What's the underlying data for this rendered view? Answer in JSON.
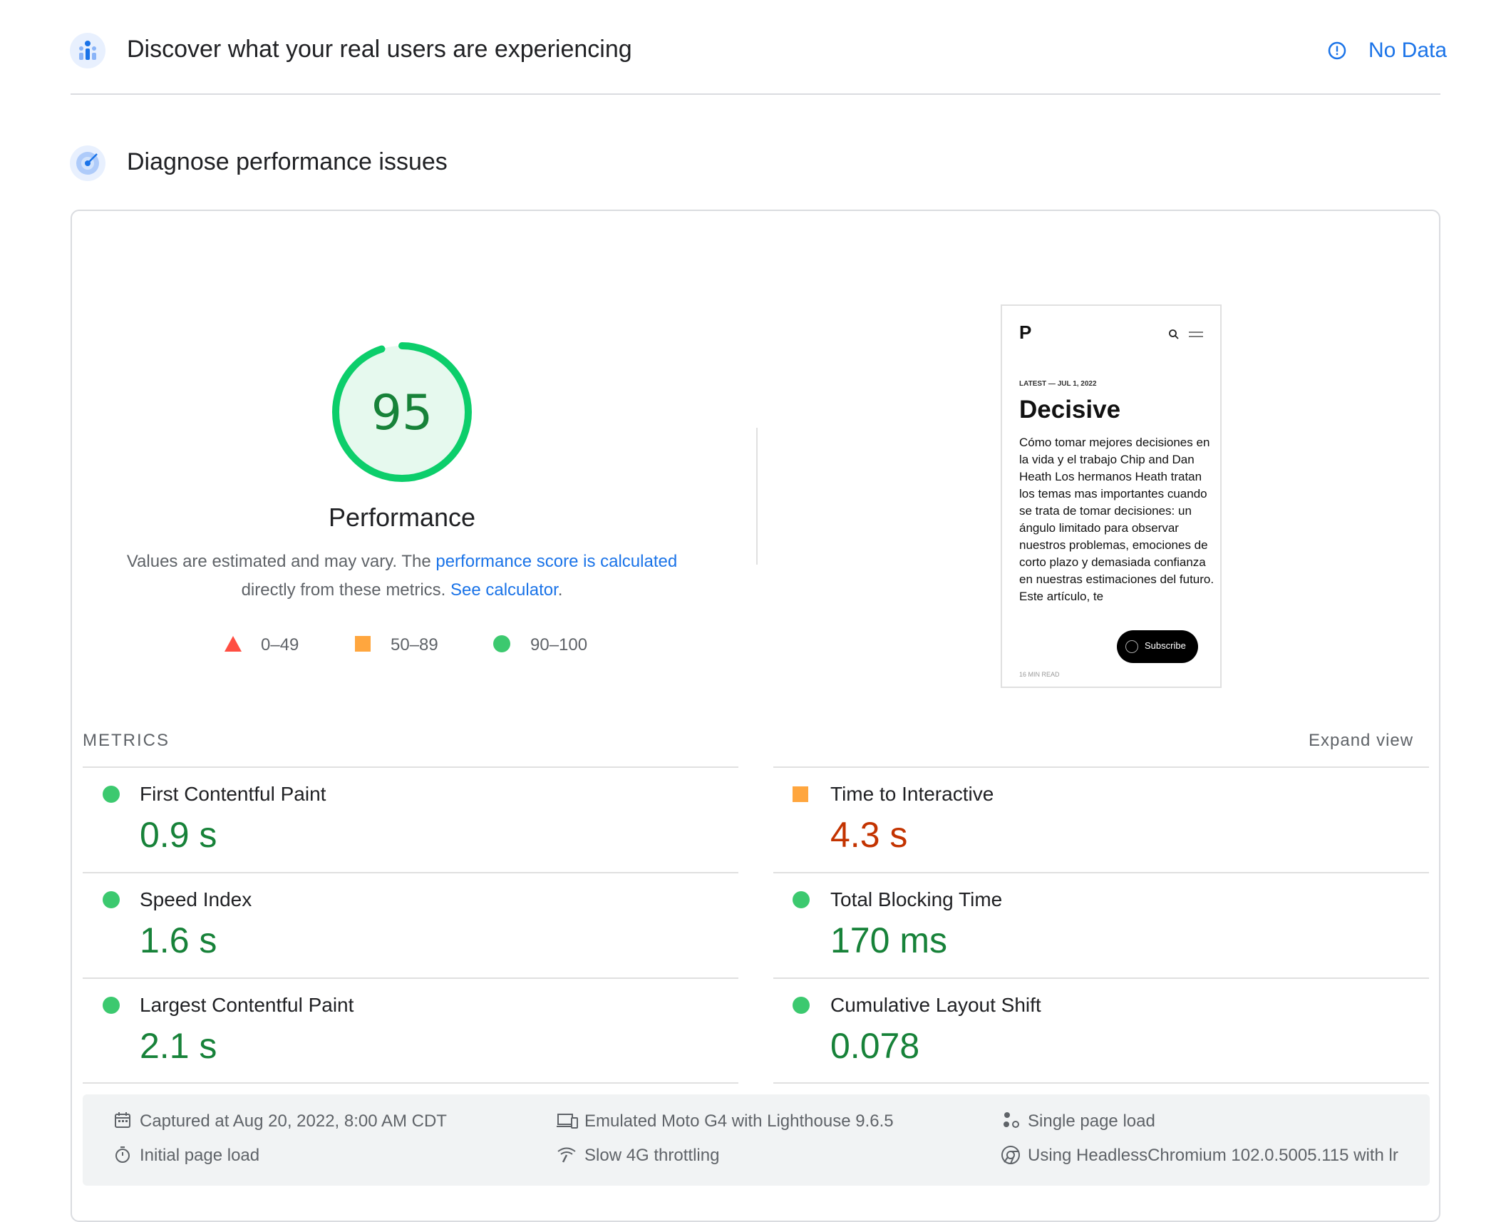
{
  "field_section": {
    "title": "Discover what your real users are experiencing",
    "status": "No Data"
  },
  "lab_section": {
    "title": "Diagnose performance issues"
  },
  "score": {
    "value": 95,
    "fraction": 0.95,
    "label": "Performance",
    "color": "#0cce6b"
  },
  "description": {
    "part1": "Values are estimated and may vary. The ",
    "link1": "performance score is calculated",
    "part2": "directly from these metrics. ",
    "link2": "See calculator",
    "part3": "."
  },
  "legend": [
    {
      "icon": "red-triangle-icon",
      "label": "0–49"
    },
    {
      "icon": "orange-square-icon",
      "label": "50–89"
    },
    {
      "icon": "green-circle-icon",
      "label": "90–100"
    }
  ],
  "preview": {
    "logo": "P",
    "kicker": "LATEST — JUL 1, 2022",
    "headline": "Decisive",
    "body": "Cómo tomar mejores decisiones en la vida y el trabajo Chip and Dan Heath Los hermanos Heath tratan los temas mas importantes cuando se trata de tomar decisiones: un ángulo limitado para observar nuestros problemas, emociones de corto plazo y demasiada confianza en nuestras estimaciones del futuro. Este artículo, te",
    "subscribe": "Subscribe",
    "read_time": "16 MIN READ"
  },
  "metrics": {
    "header": "METRICS",
    "expand": "Expand view",
    "items": [
      {
        "name": "First Contentful Paint",
        "value": "0.9 s",
        "rating": "good"
      },
      {
        "name": "Time to Interactive",
        "value": "4.3 s",
        "rating": "average"
      },
      {
        "name": "Speed Index",
        "value": "1.6 s",
        "rating": "good"
      },
      {
        "name": "Total Blocking Time",
        "value": "170 ms",
        "rating": "good"
      },
      {
        "name": "Largest Contentful Paint",
        "value": "2.1 s",
        "rating": "good"
      },
      {
        "name": "Cumulative Layout Shift",
        "value": "0.078",
        "rating": "good"
      }
    ]
  },
  "colors": {
    "good": "#178239",
    "average": "#c33300",
    "good_dot": "#0cce6b",
    "average_square": "#ffa400",
    "link": "#1a73e8"
  },
  "footer": {
    "captured": "Captured at Aug 20, 2022, 8:00 AM CDT",
    "initial": "Initial page load",
    "emulated": "Emulated Moto G4 with Lighthouse 9.6.5",
    "throttling": "Slow 4G throttling",
    "single": "Single page load",
    "using": "Using HeadlessChromium 102.0.5005.115 with lr"
  }
}
